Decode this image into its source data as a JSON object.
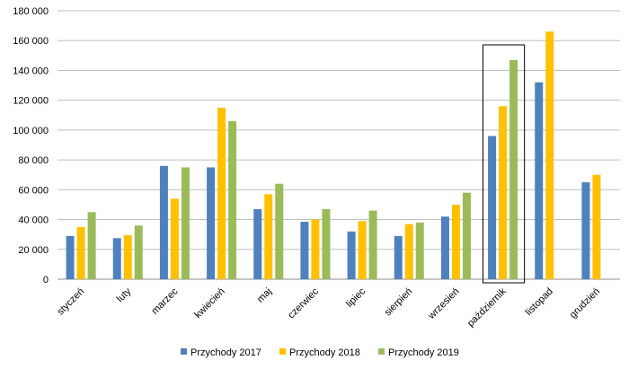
{
  "chart_data": {
    "type": "bar",
    "categories": [
      "styczeń",
      "luty",
      "marzec",
      "kwiecień",
      "maj",
      "czerwiec",
      "lipiec",
      "sierpień",
      "wrzesień",
      "październik",
      "listopad",
      "grudzień"
    ],
    "series": [
      {
        "name": "Przychody 2017",
        "color": "#4F81BD",
        "values": [
          29000,
          27500,
          76000,
          75000,
          47000,
          38500,
          32000,
          29000,
          42000,
          96000,
          132000,
          65000
        ]
      },
      {
        "name": "Przychody 2018",
        "color": "#FFC000",
        "values": [
          35000,
          29500,
          54000,
          115000,
          57000,
          40000,
          39000,
          37000,
          50000,
          116000,
          166000,
          70000
        ]
      },
      {
        "name": "Przychody 2019",
        "color": "#9BBB59",
        "values": [
          45000,
          36000,
          75000,
          106000,
          64000,
          47000,
          46000,
          38000,
          58000,
          147000,
          null,
          null
        ]
      }
    ],
    "y_ticks": [
      "0",
      "20 000",
      "40 000",
      "60 000",
      "80 000",
      "100 000",
      "120 000",
      "140 000",
      "160 000",
      "180 000"
    ],
    "ylim": [
      0,
      180000
    ],
    "grid": true,
    "legend_position": "bottom",
    "highlighted_category": "październik"
  }
}
